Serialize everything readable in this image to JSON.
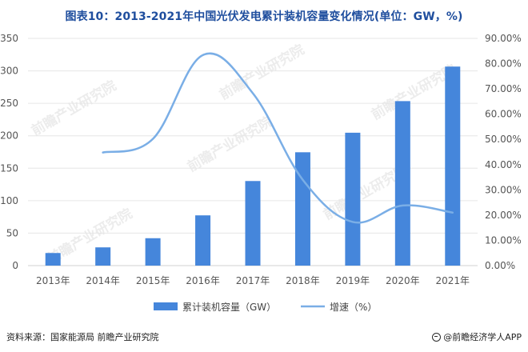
{
  "title": "图表10：2013-2021年中国光伏发电累计装机容量变化情况(单位：GW，%)",
  "footer": {
    "source": "资料来源：国家能源局 前瞻产业研究院",
    "brand": "@前瞻经济学人APP"
  },
  "watermark": "前瞻产业研究院",
  "colors": {
    "bar": "#4586db",
    "line": "#7aaee6",
    "title": "#1f4e9e",
    "grid": "#e6e6e6"
  },
  "chart_data": {
    "type": "bar",
    "categories": [
      "2013年",
      "2014年",
      "2015年",
      "2016年",
      "2017年",
      "2018年",
      "2019年",
      "2020年",
      "2021年"
    ],
    "series": [
      {
        "name": "累计装机容量（GW）",
        "type": "bar",
        "axis": "left",
        "values": [
          19.4,
          28.1,
          42.2,
          77.4,
          130.3,
          174.6,
          204.7,
          253.4,
          306.6
        ]
      },
      {
        "name": "增速（%）",
        "type": "line",
        "axis": "right",
        "values": [
          null,
          44.8,
          50.2,
          83.4,
          68.3,
          34.0,
          17.3,
          23.8,
          21.0
        ]
      }
    ],
    "y_left": {
      "min": 0,
      "max": 350,
      "ticks": [
        "0",
        "50",
        "100",
        "150",
        "200",
        "250",
        "300",
        "350"
      ]
    },
    "y_right": {
      "min": 0,
      "max": 90,
      "ticks": [
        "0.00%",
        "10.00%",
        "20.00%",
        "30.00%",
        "40.00%",
        "50.00%",
        "60.00%",
        "70.00%",
        "80.00%",
        "90.00%"
      ]
    },
    "grid": true,
    "legend": "bottom"
  }
}
